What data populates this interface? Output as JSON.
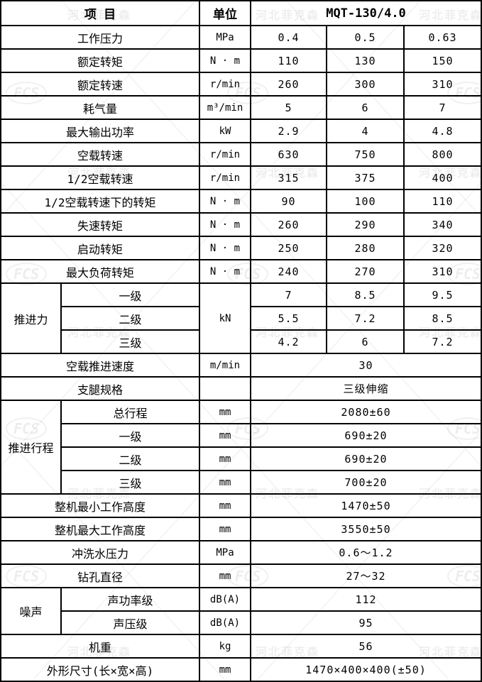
{
  "table": {
    "header": {
      "item": "项 目",
      "unit": "单位",
      "model": "MQT-130/4.0"
    },
    "rows": [
      {
        "item": "工作压力",
        "unit": "MPa",
        "values": [
          "0.4",
          "0.5",
          "0.63"
        ]
      },
      {
        "item": "额定转矩",
        "unit": "N · m",
        "values": [
          "110",
          "130",
          "150"
        ]
      },
      {
        "item": "额定转速",
        "unit": "r/min",
        "values": [
          "260",
          "300",
          "310"
        ]
      },
      {
        "item": "耗气量",
        "unit": "m³/min",
        "values": [
          "5",
          "6",
          "7"
        ]
      },
      {
        "item": "最大输出功率",
        "unit": "kW",
        "values": [
          "2.9",
          "4",
          "4.8"
        ]
      },
      {
        "item": "空载转速",
        "unit": "r/min",
        "values": [
          "630",
          "750",
          "800"
        ]
      },
      {
        "item": "1/2空载转速",
        "unit": "r/min",
        "values": [
          "315",
          "375",
          "400"
        ]
      },
      {
        "item": "1/2空载转速下的转矩",
        "unit": "N · m",
        "values": [
          "90",
          "100",
          "110"
        ]
      },
      {
        "item": "失速转矩",
        "unit": "N · m",
        "values": [
          "260",
          "290",
          "340"
        ]
      },
      {
        "item": "启动转矩",
        "unit": "N · m",
        "values": [
          "250",
          "280",
          "320"
        ]
      },
      {
        "item": "最大负荷转矩",
        "unit": "N · m",
        "values": [
          "240",
          "270",
          "310"
        ]
      },
      {
        "group": {
          "label": "推进力",
          "rows": 3
        },
        "item": "一级",
        "unit": "kN",
        "unitSpan": 3,
        "values": [
          "7",
          "8.5",
          "9.5"
        ]
      },
      {
        "sub": true,
        "item": "二级",
        "unitCovered": true,
        "values": [
          "5.5",
          "7.2",
          "8.5"
        ]
      },
      {
        "sub": true,
        "item": "三级",
        "unitCovered": true,
        "values": [
          "4.2",
          "6",
          "7.2"
        ]
      },
      {
        "item": "空载推进速度",
        "unit": "m/min",
        "value": "30"
      },
      {
        "item": "支腿规格",
        "unit": "",
        "value": "三级伸缩"
      },
      {
        "group": {
          "label": "推进行程",
          "rows": 4
        },
        "item": "总行程",
        "unit": "mm",
        "value": "2080±60"
      },
      {
        "sub": true,
        "item": "一级",
        "unit": "mm",
        "value": "690±20"
      },
      {
        "sub": true,
        "item": "二级",
        "unit": "mm",
        "value": "690±20"
      },
      {
        "sub": true,
        "item": "三级",
        "unit": "mm",
        "value": "700±20"
      },
      {
        "item": "整机最小工作高度",
        "unit": "mm",
        "value": "1470±50"
      },
      {
        "item": "整机最大工作高度",
        "unit": "mm",
        "value": "3550±50"
      },
      {
        "item": "冲洗水压力",
        "unit": "MPa",
        "value": "0.6～1.2"
      },
      {
        "item": "钻孔直径",
        "unit": "mm",
        "value": "27～32"
      },
      {
        "group": {
          "label": "噪声",
          "rows": 2
        },
        "item": "声功率级",
        "unit": "dB(A)",
        "value": "112"
      },
      {
        "sub": true,
        "item": "声压级",
        "unit": "dB(A)",
        "value": "95"
      },
      {
        "item": "机重",
        "unit": "kg",
        "value": "56"
      },
      {
        "item": "外形尺寸(长×宽×高)",
        "unit": "mm",
        "value": "1470×400×400(±50)"
      }
    ]
  },
  "watermark": {
    "logo": "FCS",
    "text": "河北菲克森"
  }
}
